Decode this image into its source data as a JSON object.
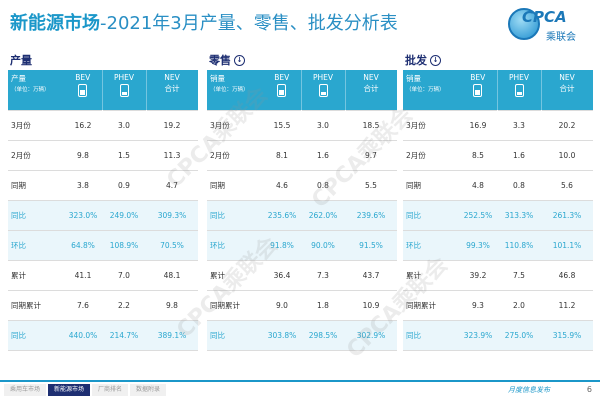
{
  "title": {
    "main": "新能源市场",
    "sub": "-2021年3月产量、零售、批发分析表"
  },
  "logo": {
    "text": "CPCA",
    "chinese": "乘联会",
    "watermark": "CPCA乘联会"
  },
  "panels": [
    {
      "title": "产量",
      "icon": "",
      "header": {
        "c0_line1": "产量",
        "c0_unit": "（单位：万辆）",
        "c1": "BEV",
        "c2": "PHEV",
        "c3_line1": "NEV",
        "c3_line2": "合计"
      },
      "rows": [
        [
          "3月份",
          "16.2",
          "3.0",
          "19.2"
        ],
        [
          "2月份",
          "9.8",
          "1.5",
          "11.3"
        ],
        [
          "同期",
          "3.8",
          "0.9",
          "4.7"
        ],
        [
          "同比",
          "323.0%",
          "249.0%",
          "309.3%"
        ],
        [
          "环比",
          "64.8%",
          "108.9%",
          "70.5%"
        ],
        [
          "累计",
          "41.1",
          "7.0",
          "48.1"
        ],
        [
          "同期累计",
          "7.6",
          "2.2",
          "9.8"
        ],
        [
          "同比",
          "440.0%",
          "214.7%",
          "389.1%"
        ]
      ]
    },
    {
      "title": "零售",
      "icon": "down-arrow-circle-icon",
      "header": {
        "c0_line1": "销量",
        "c0_unit": "（单位：万辆）",
        "c1": "BEV",
        "c2": "PHEV",
        "c3_line1": "NEV",
        "c3_line2": "合计"
      },
      "rows": [
        [
          "3月份",
          "15.5",
          "3.0",
          "18.5"
        ],
        [
          "2月份",
          "8.1",
          "1.6",
          "9.7"
        ],
        [
          "同期",
          "4.6",
          "0.8",
          "5.5"
        ],
        [
          "同比",
          "235.6%",
          "262.0%",
          "239.6%"
        ],
        [
          "环比",
          "91.8%",
          "90.0%",
          "91.5%"
        ],
        [
          "累计",
          "36.4",
          "7.3",
          "43.7"
        ],
        [
          "同期累计",
          "9.0",
          "1.8",
          "10.9"
        ],
        [
          "同比",
          "303.8%",
          "298.5%",
          "302.9%"
        ]
      ]
    },
    {
      "title": "批发",
      "icon": "down-arrow-circle-icon",
      "header": {
        "c0_line1": "销量",
        "c0_unit": "（单位：万辆）",
        "c1": "BEV",
        "c2": "PHEV",
        "c3_line1": "NEV",
        "c3_line2": "合计"
      },
      "rows": [
        [
          "3月份",
          "16.9",
          "3.3",
          "20.2"
        ],
        [
          "2月份",
          "8.5",
          "1.6",
          "10.0"
        ],
        [
          "同期",
          "4.8",
          "0.8",
          "5.6"
        ],
        [
          "同比",
          "252.5%",
          "313.3%",
          "261.3%"
        ],
        [
          "环比",
          "99.3%",
          "110.8%",
          "101.1%"
        ],
        [
          "累计",
          "39.2",
          "7.5",
          "46.8"
        ],
        [
          "同期累计",
          "9.3",
          "2.0",
          "11.2"
        ],
        [
          "同比",
          "323.9%",
          "275.0%",
          "315.9%"
        ]
      ]
    }
  ],
  "footer": {
    "tabs": [
      "乘用车市场",
      "新能源市场",
      "厂商排名",
      "数据附录"
    ],
    "active_tab_index": 1,
    "report": "月度信息发布",
    "page": "6"
  },
  "colors": {
    "accent": "#2aa7cf",
    "title": "#1b97c9",
    "navy": "#1e2f72",
    "highlight_row": "#eaf6fb"
  }
}
